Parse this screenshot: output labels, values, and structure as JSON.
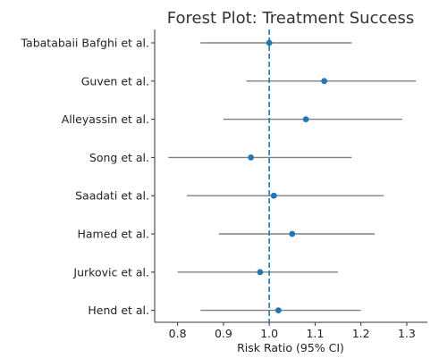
{
  "chart_data": {
    "type": "forest",
    "title": "Forest Plot: Treatment Success",
    "xlabel": "Risk Ratio (95% CI)",
    "ylabel": "",
    "xlim": [
      0.75,
      1.345
    ],
    "xticks": [
      0.8,
      0.9,
      1.0,
      1.1,
      1.2,
      1.3
    ],
    "xtick_labels": [
      "0.8",
      "0.9",
      "1.0",
      "1.1",
      "1.2",
      "1.3"
    ],
    "reference_line": 1.0,
    "grid": false,
    "colors": {
      "point": "#1f77b4",
      "ci_line": "#808080",
      "reference": "#1f77b4",
      "axis": "#333333"
    },
    "studies": [
      {
        "name": "Tabatabaii Bafghi et al.",
        "rr": 1.0,
        "lower": 0.85,
        "upper": 1.18
      },
      {
        "name": "Guven et al.",
        "rr": 1.12,
        "lower": 0.95,
        "upper": 1.32
      },
      {
        "name": "Alleyassin et al.",
        "rr": 1.08,
        "lower": 0.9,
        "upper": 1.29
      },
      {
        "name": "Song et al.",
        "rr": 0.96,
        "lower": 0.78,
        "upper": 1.18
      },
      {
        "name": "Saadati et al.",
        "rr": 1.01,
        "lower": 0.82,
        "upper": 1.25
      },
      {
        "name": "Hamed et al.",
        "rr": 1.05,
        "lower": 0.89,
        "upper": 1.23
      },
      {
        "name": "Jurkovic et al.",
        "rr": 0.98,
        "lower": 0.8,
        "upper": 1.15
      },
      {
        "name": "Hend et al.",
        "rr": 1.02,
        "lower": 0.85,
        "upper": 1.2
      }
    ]
  }
}
